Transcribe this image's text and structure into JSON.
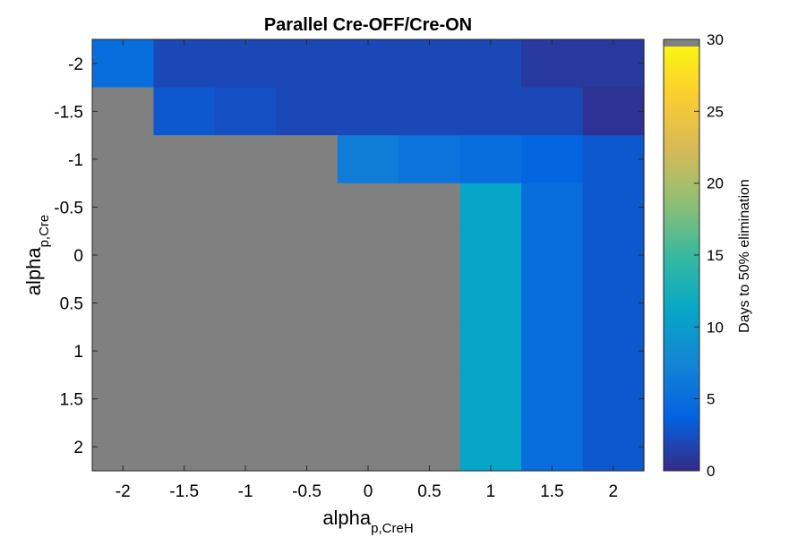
{
  "chart_data": {
    "type": "heatmap",
    "title": "Parallel Cre-OFF/Cre-ON",
    "xlabel": {
      "main": "alpha",
      "sub": "p,CreH"
    },
    "ylabel": {
      "main": "alpha",
      "sub": "p,Cre"
    },
    "x": [
      -2,
      -1.5,
      -1,
      -0.5,
      0,
      0.5,
      1,
      1.5,
      2
    ],
    "y": [
      -2,
      -1.5,
      -1,
      -0.5,
      0,
      0.5,
      1,
      1.5,
      2
    ],
    "x_tick_labels": [
      "-2",
      "-1.5",
      "-1",
      "-0.5",
      "0",
      "0.5",
      "1",
      "1.5",
      "2"
    ],
    "y_tick_labels": [
      "-2",
      "-1.5",
      "-1",
      "-0.5",
      "0",
      "0.5",
      "1",
      "1.5",
      "2"
    ],
    "values_note": "Rows ordered by y (top to bottom), columns by x. null = no 50% elimination (shown gray).",
    "values": [
      [
        5,
        2,
        2,
        2,
        2,
        2,
        2,
        1,
        1
      ],
      [
        null,
        3,
        2.5,
        2,
        2,
        2,
        2,
        2,
        0.5
      ],
      [
        null,
        null,
        null,
        null,
        6.5,
        5.5,
        5,
        4,
        3
      ],
      [
        null,
        null,
        null,
        null,
        null,
        null,
        11,
        5,
        3
      ],
      [
        null,
        null,
        null,
        null,
        null,
        null,
        11,
        5,
        3
      ],
      [
        null,
        null,
        null,
        null,
        null,
        null,
        11,
        5,
        3
      ],
      [
        null,
        null,
        null,
        null,
        null,
        null,
        11,
        5,
        3
      ],
      [
        null,
        null,
        null,
        null,
        null,
        null,
        11,
        5,
        3
      ],
      [
        null,
        null,
        null,
        null,
        null,
        null,
        11,
        5,
        3
      ]
    ],
    "colorbar": {
      "label": "Days to 50% elimination",
      "range": [
        0,
        30
      ],
      "ticks": [
        0,
        5,
        10,
        15,
        20,
        25,
        30
      ],
      "tick_labels": [
        "0",
        "5",
        "10",
        "15",
        "20",
        "25",
        "30"
      ],
      "missing_color": "#808080",
      "colormap": [
        "#352a87",
        "#0363e1",
        "#1485d4",
        "#06a7c6",
        "#38b99e",
        "#92bf73",
        "#d9ba56",
        "#fcce2e",
        "#f9fb0e"
      ]
    }
  }
}
